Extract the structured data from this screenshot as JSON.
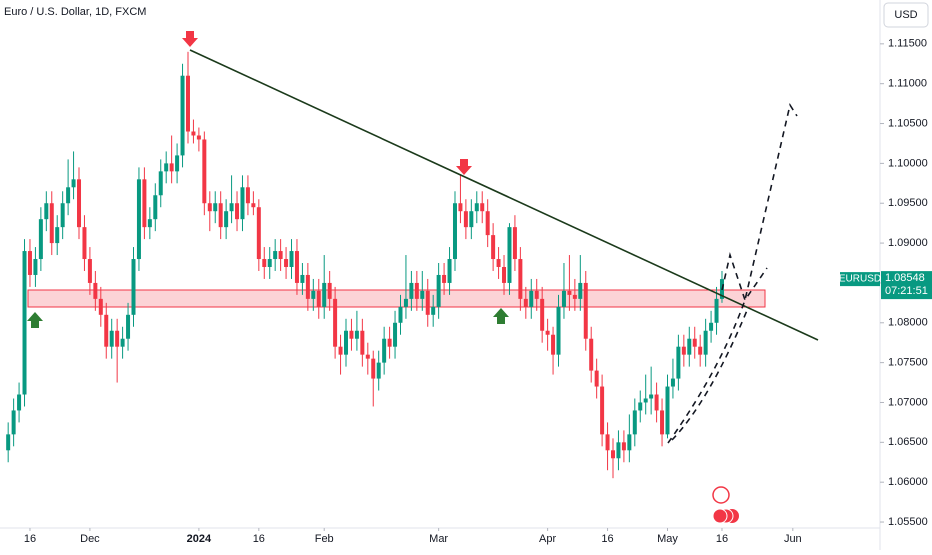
{
  "chart_data": {
    "type": "candlestick",
    "title": "Euro / U.S. Dollar, 1D, FXCM",
    "currency": "USD",
    "symbol": "EURUSD",
    "last_price": {
      "value": 1.08548,
      "label": "1.08548"
    },
    "countdown": "07:21:51",
    "up_color": "#089981",
    "down_color": "#f23645",
    "grid": false,
    "ylim": [
      1.054,
      1.1205
    ],
    "yticks": [
      {
        "value": 1.115,
        "label": "1.11500"
      },
      {
        "value": 1.11,
        "label": "1.11000"
      },
      {
        "value": 1.105,
        "label": "1.10500"
      },
      {
        "value": 1.1,
        "label": "1.10000"
      },
      {
        "value": 1.095,
        "label": "1.09500"
      },
      {
        "value": 1.09,
        "label": "1.09000"
      },
      {
        "value": 1.085,
        "label": "1.08500"
      },
      {
        "value": 1.08,
        "label": "1.08000"
      },
      {
        "value": 1.075,
        "label": "1.07500"
      },
      {
        "value": 1.07,
        "label": "1.07000"
      },
      {
        "value": 1.065,
        "label": "1.06500"
      },
      {
        "value": 1.06,
        "label": "1.06000"
      },
      {
        "value": 1.055,
        "label": "1.05500"
      }
    ],
    "xlim": [
      -1.5,
      160
    ],
    "xticks": [
      {
        "value": 4,
        "label": "16"
      },
      {
        "value": 15,
        "label": "Dec"
      },
      {
        "value": 35,
        "label": "2024"
      },
      {
        "value": 46,
        "label": "16"
      },
      {
        "value": 58,
        "label": "Feb"
      },
      {
        "value": 79,
        "label": "Mar"
      },
      {
        "value": 99,
        "label": "Apr"
      },
      {
        "value": 110,
        "label": "16"
      },
      {
        "value": 121,
        "label": "May"
      },
      {
        "value": 131,
        "label": "16"
      },
      {
        "value": 144,
        "label": "Jun"
      }
    ],
    "candles": [
      [
        1.064,
        1.0675,
        1.0625,
        1.066
      ],
      [
        1.066,
        1.0705,
        1.0645,
        1.069
      ],
      [
        1.069,
        1.0725,
        1.0675,
        1.071
      ],
      [
        1.071,
        1.0905,
        1.0695,
        1.089
      ],
      [
        1.089,
        1.0905,
        1.0845,
        1.086
      ],
      [
        1.086,
        1.0895,
        1.0845,
        1.088
      ],
      [
        1.088,
        1.0945,
        1.0865,
        1.093
      ],
      [
        1.093,
        1.0965,
        1.0915,
        1.095
      ],
      [
        1.095,
        1.0965,
        1.0885,
        1.09
      ],
      [
        1.09,
        1.0935,
        1.0885,
        1.092
      ],
      [
        1.092,
        1.0965,
        1.0905,
        1.095
      ],
      [
        1.095,
        1.1005,
        1.0935,
        1.097
      ],
      [
        1.097,
        1.1015,
        1.0955,
        1.098
      ],
      [
        1.098,
        1.0995,
        1.0905,
        1.092
      ],
      [
        1.092,
        1.0935,
        1.0865,
        1.088
      ],
      [
        1.088,
        1.0895,
        1.0835,
        1.085
      ],
      [
        1.085,
        1.0865,
        1.0815,
        1.083
      ],
      [
        1.083,
        1.0845,
        1.0795,
        1.081
      ],
      [
        1.081,
        1.0825,
        1.0755,
        1.077
      ],
      [
        1.077,
        1.0805,
        1.0755,
        1.079
      ],
      [
        1.079,
        1.0805,
        1.0725,
        1.077
      ],
      [
        1.077,
        1.0795,
        1.0755,
        1.078
      ],
      [
        1.078,
        1.0825,
        1.0765,
        1.081
      ],
      [
        1.081,
        1.0895,
        1.0795,
        1.088
      ],
      [
        1.088,
        1.0995,
        1.0865,
        1.098
      ],
      [
        1.098,
        1.0995,
        1.0905,
        1.092
      ],
      [
        1.092,
        1.0945,
        1.0905,
        1.093
      ],
      [
        1.093,
        1.0975,
        1.0915,
        1.096
      ],
      [
        1.096,
        1.1005,
        1.0945,
        1.099
      ],
      [
        1.099,
        1.1015,
        1.0975,
        1.1
      ],
      [
        1.1,
        1.1035,
        1.0975,
        1.099
      ],
      [
        1.099,
        1.1025,
        1.0975,
        1.101
      ],
      [
        1.101,
        1.1125,
        1.0995,
        1.111
      ],
      [
        1.111,
        1.114,
        1.1025,
        1.104
      ],
      [
        1.104,
        1.1055,
        1.1025,
        1.1035
      ],
      [
        1.1035,
        1.1045,
        1.1015,
        1.103
      ],
      [
        1.103,
        1.104,
        1.0935,
        1.095
      ],
      [
        1.095,
        1.0965,
        1.0915,
        1.094
      ],
      [
        1.094,
        1.0965,
        1.0925,
        1.095
      ],
      [
        1.095,
        1.0965,
        1.0905,
        1.092
      ],
      [
        1.092,
        1.0955,
        1.0905,
        1.094
      ],
      [
        1.094,
        1.0985,
        1.0925,
        1.095
      ],
      [
        1.095,
        1.0965,
        1.0915,
        1.093
      ],
      [
        1.093,
        1.0985,
        1.0915,
        1.097
      ],
      [
        1.097,
        1.0985,
        1.0935,
        1.095
      ],
      [
        1.095,
        1.0965,
        1.0935,
        1.0945
      ],
      [
        1.0945,
        1.0955,
        1.0865,
        1.088
      ],
      [
        1.088,
        1.0895,
        1.0855,
        1.087
      ],
      [
        1.087,
        1.0895,
        1.0855,
        1.088
      ],
      [
        1.088,
        1.0905,
        1.0865,
        1.089
      ],
      [
        1.089,
        1.0905,
        1.0865,
        1.088
      ],
      [
        1.088,
        1.0895,
        1.0855,
        1.087
      ],
      [
        1.087,
        1.0905,
        1.0855,
        1.089
      ],
      [
        1.089,
        1.0905,
        1.0835,
        1.085
      ],
      [
        1.085,
        1.0875,
        1.0835,
        1.086
      ],
      [
        1.086,
        1.0875,
        1.0815,
        1.083
      ],
      [
        1.083,
        1.0855,
        1.0815,
        1.084
      ],
      [
        1.084,
        1.0855,
        1.0805,
        1.082
      ],
      [
        1.082,
        1.0885,
        1.0805,
        1.085
      ],
      [
        1.085,
        1.0865,
        1.0815,
        1.083
      ],
      [
        1.083,
        1.0845,
        1.0755,
        1.077
      ],
      [
        1.077,
        1.0785,
        1.0735,
        1.076
      ],
      [
        1.076,
        1.0805,
        1.0745,
        1.079
      ],
      [
        1.079,
        1.0805,
        1.0765,
        1.078
      ],
      [
        1.078,
        1.0815,
        1.0765,
        1.079
      ],
      [
        1.079,
        1.0805,
        1.0745,
        1.076
      ],
      [
        1.076,
        1.0775,
        1.0735,
        1.0755
      ],
      [
        1.0755,
        1.0765,
        1.0695,
        1.073
      ],
      [
        1.073,
        1.0765,
        1.0715,
        1.075
      ],
      [
        1.075,
        1.0795,
        1.0735,
        1.078
      ],
      [
        1.078,
        1.0795,
        1.0755,
        1.077
      ],
      [
        1.077,
        1.0815,
        1.0755,
        1.08
      ],
      [
        1.08,
        1.0835,
        1.0785,
        1.082
      ],
      [
        1.082,
        1.0885,
        1.0805,
        1.083
      ],
      [
        1.083,
        1.0865,
        1.0815,
        1.085
      ],
      [
        1.085,
        1.0865,
        1.0815,
        1.083
      ],
      [
        1.083,
        1.0865,
        1.0815,
        1.084
      ],
      [
        1.084,
        1.0855,
        1.0795,
        1.081
      ],
      [
        1.081,
        1.0835,
        1.0795,
        1.082
      ],
      [
        1.082,
        1.0875,
        1.0805,
        1.086
      ],
      [
        1.086,
        1.0875,
        1.0835,
        1.085
      ],
      [
        1.085,
        1.0895,
        1.0835,
        1.088
      ],
      [
        1.088,
        1.0965,
        1.0865,
        1.095
      ],
      [
        1.095,
        1.0985,
        1.0925,
        1.094
      ],
      [
        1.094,
        1.0955,
        1.0905,
        1.092
      ],
      [
        1.092,
        1.0955,
        1.0905,
        1.094
      ],
      [
        1.094,
        1.0965,
        1.0925,
        1.095
      ],
      [
        1.095,
        1.0965,
        1.0925,
        1.094
      ],
      [
        1.094,
        1.0955,
        1.0895,
        1.091
      ],
      [
        1.091,
        1.0925,
        1.0865,
        1.088
      ],
      [
        1.088,
        1.0895,
        1.0855,
        1.087
      ],
      [
        1.087,
        1.0885,
        1.0835,
        1.085
      ],
      [
        1.085,
        1.0925,
        1.0835,
        1.092
      ],
      [
        1.092,
        1.0935,
        1.0865,
        1.088
      ],
      [
        1.088,
        1.0895,
        1.0815,
        1.083
      ],
      [
        1.083,
        1.0845,
        1.0805,
        1.082
      ],
      [
        1.082,
        1.0855,
        1.0805,
        1.084
      ],
      [
        1.084,
        1.0855,
        1.0815,
        1.083
      ],
      [
        1.083,
        1.0845,
        1.0775,
        1.079
      ],
      [
        1.079,
        1.0805,
        1.0765,
        1.0785
      ],
      [
        1.0785,
        1.0795,
        1.0735,
        1.076
      ],
      [
        1.076,
        1.0835,
        1.0745,
        1.082
      ],
      [
        1.082,
        1.0875,
        1.0805,
        1.084
      ],
      [
        1.084,
        1.0885,
        1.0815,
        1.0835
      ],
      [
        1.0835,
        1.0855,
        1.0815,
        1.083
      ],
      [
        1.083,
        1.0885,
        1.0815,
        1.085
      ],
      [
        1.085,
        1.0865,
        1.0765,
        1.078
      ],
      [
        1.078,
        1.0795,
        1.0725,
        1.074
      ],
      [
        1.074,
        1.0755,
        1.0705,
        1.072
      ],
      [
        1.072,
        1.0735,
        1.0645,
        1.066
      ],
      [
        1.066,
        1.0675,
        1.0615,
        1.064
      ],
      [
        1.064,
        1.0655,
        1.0605,
        1.063
      ],
      [
        1.063,
        1.0665,
        1.0615,
        1.065
      ],
      [
        1.065,
        1.0665,
        1.0625,
        1.064
      ],
      [
        1.064,
        1.0685,
        1.0625,
        1.066
      ],
      [
        1.066,
        1.0705,
        1.0645,
        1.069
      ],
      [
        1.069,
        1.0715,
        1.0675,
        1.07
      ],
      [
        1.07,
        1.0735,
        1.0685,
        1.0705
      ],
      [
        1.0705,
        1.0745,
        1.0685,
        1.071
      ],
      [
        1.071,
        1.0725,
        1.0675,
        1.069
      ],
      [
        1.069,
        1.0705,
        1.0645,
        1.066
      ],
      [
        1.066,
        1.0735,
        1.0655,
        1.072
      ],
      [
        1.072,
        1.0755,
        1.0705,
        1.073
      ],
      [
        1.073,
        1.0785,
        1.0715,
        1.077
      ],
      [
        1.077,
        1.0785,
        1.0745,
        1.076
      ],
      [
        1.076,
        1.0795,
        1.0745,
        1.078
      ],
      [
        1.078,
        1.0795,
        1.0755,
        1.077
      ],
      [
        1.077,
        1.0785,
        1.0745,
        1.076
      ],
      [
        1.076,
        1.0805,
        1.0745,
        1.079
      ],
      [
        1.079,
        1.0815,
        1.0775,
        1.08
      ],
      [
        1.08,
        1.0845,
        1.0785,
        1.083
      ],
      [
        1.083,
        1.0865,
        1.0825,
        1.08548
      ]
    ]
  }
}
